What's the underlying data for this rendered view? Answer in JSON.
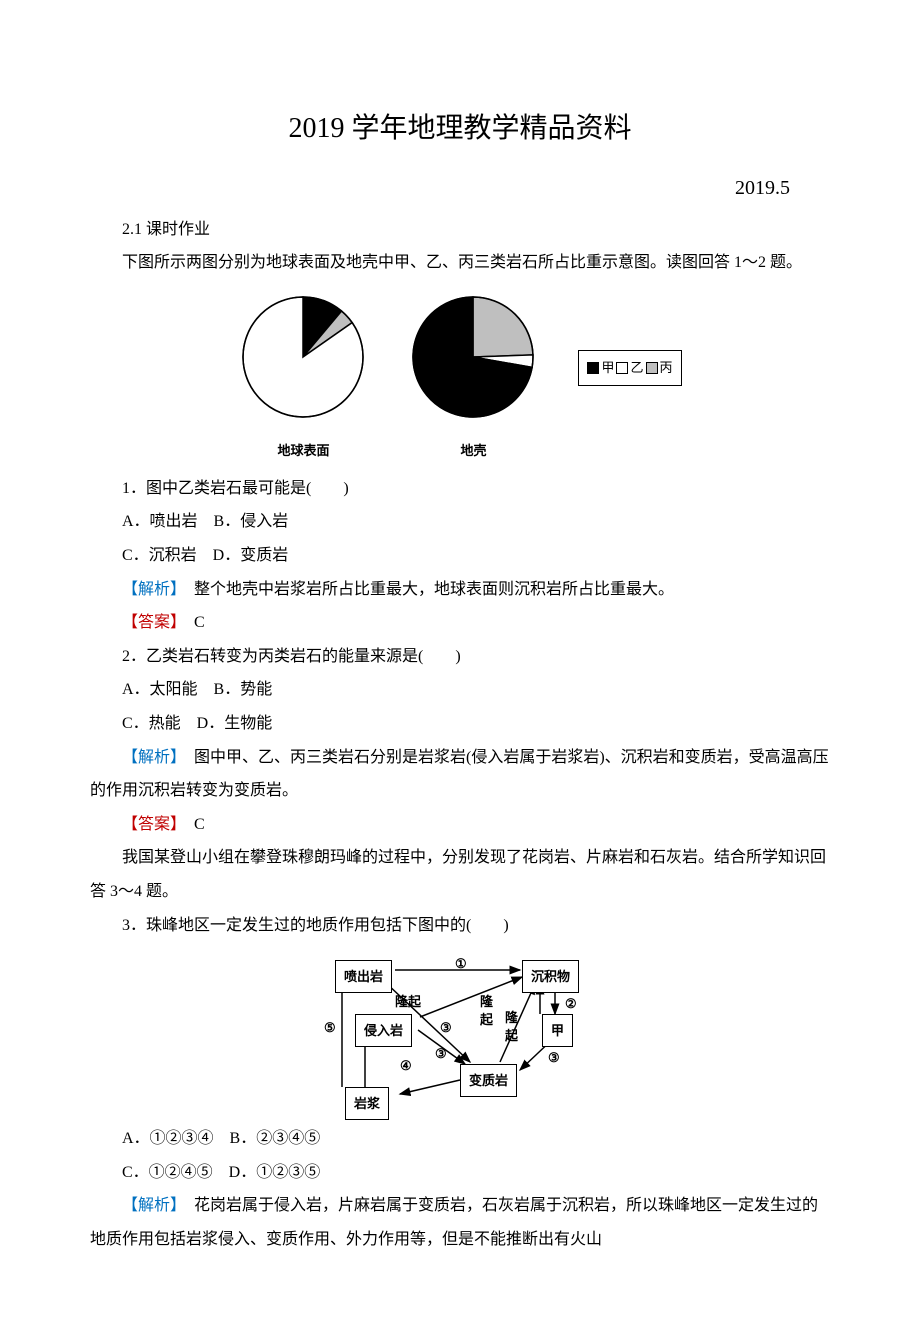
{
  "title": "2019 学年地理教学精品资料",
  "date": "2019.5",
  "section": "2.1 课时作业",
  "intro1": "下图所示两图分别为地球表面及地壳中甲、乙、丙三类岩石所占比重示意图。读图回答 1～2 题。",
  "pies": {
    "left_label": "地球表面",
    "right_label": "地壳",
    "legend": {
      "a": "甲",
      "b": "乙",
      "c": "丙"
    },
    "left_slices": [
      {
        "color": "#000000",
        "start": 0,
        "end": 40
      },
      {
        "color": "#bfbfbf",
        "start": 40,
        "end": 55
      },
      {
        "color": "#ffffff",
        "start": 55,
        "end": 360
      }
    ],
    "right_slices": [
      {
        "color": "#bfbfbf",
        "start": 0,
        "end": 88
      },
      {
        "color": "#ffffff",
        "start": 88,
        "end": 100
      },
      {
        "color": "#000000",
        "start": 100,
        "end": 360
      }
    ]
  },
  "q1": {
    "stem": "1．图中乙类岩石最可能是(　　)",
    "optA": "A．喷出岩　B．侵入岩",
    "optC": "C．沉积岩　D．变质岩",
    "expl_label": "【解析】",
    "expl": "　整个地壳中岩浆岩所占比重最大，地球表面则沉积岩所占比重最大。",
    "ans_label": "【答案】",
    "ans": "　C"
  },
  "q2": {
    "stem": "2．乙类岩石转变为丙类岩石的能量来源是(　　)",
    "optA": "A．太阳能　B．势能",
    "optC": "C．热能　D．生物能",
    "expl_label": "【解析】",
    "expl": "　图中甲、乙、丙三类岩石分别是岩浆岩(侵入岩属于岩浆岩)、沉积岩和变质岩，受高温高压的作用沉积岩转变为变质岩。",
    "ans_label": "【答案】",
    "ans": "　C"
  },
  "intro2": "我国某登山小组在攀登珠穆朗玛峰的过程中，分别发现了花岗岩、片麻岩和石灰岩。结合所学知识回答 3～4 题。",
  "q3": {
    "stem": "3．珠峰地区一定发生过的地质作用包括下图中的(　　)",
    "optA": "A．①②③④　B．②③④⑤",
    "optC": "C．①②④⑤　D．①②③⑤",
    "expl_label": "【解析】",
    "expl": "　花岗岩属于侵入岩，片麻岩属于变质岩，石灰岩属于沉积岩，所以珠峰地区一定发生过的地质作用包括岩浆侵入、变质作用、外力作用等，但是不能推断出有火山"
  },
  "diagram": {
    "nodes": {
      "penchu": "喷出岩",
      "chenjiwu": "沉积物",
      "qinru": "侵入岩",
      "jia": "甲",
      "yanjiang": "岩浆",
      "bianzhi": "变质岩"
    },
    "labels": {
      "n1": "①",
      "n2": "②",
      "n3a": "③",
      "n3b": "③",
      "n3c": "③",
      "n4": "④",
      "n5": "⑤",
      "longqi1": "隆起",
      "longqi2": "隆",
      "longqi2b": "起",
      "longqi3": "隆",
      "longqi3b": "起"
    }
  }
}
